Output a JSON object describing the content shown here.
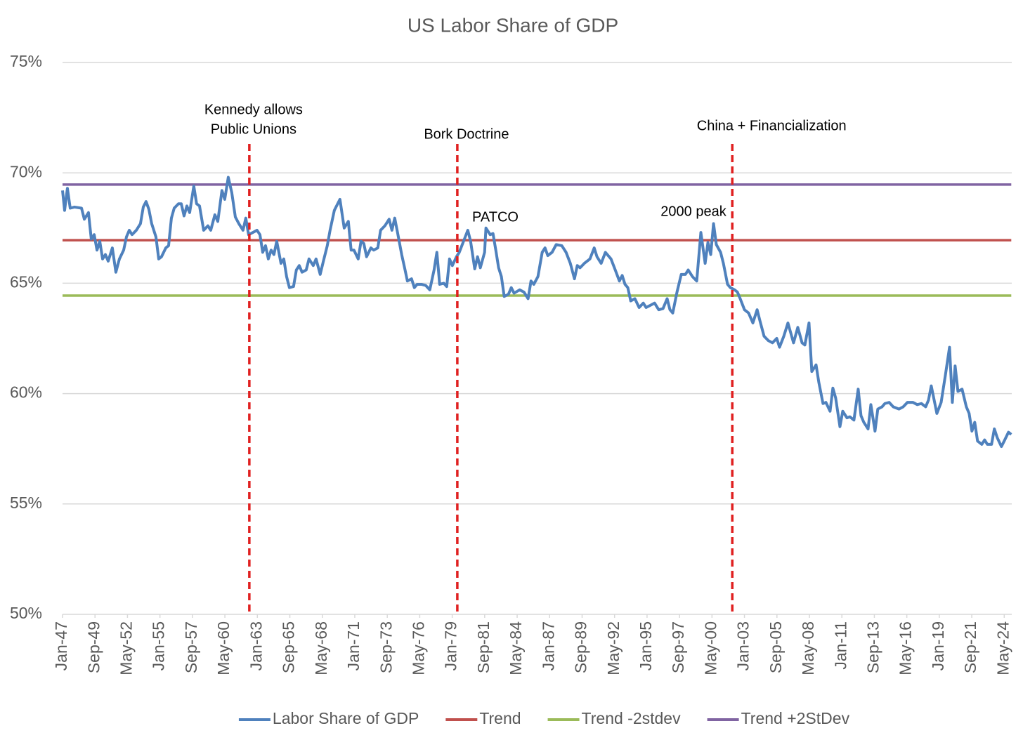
{
  "chart_data": {
    "type": "line",
    "title": "US Labor Share of GDP",
    "xlim": [
      1947,
      2024.95
    ],
    "ylim": [
      50,
      75
    ],
    "yticks": [
      {
        "value": 50,
        "label": "50%"
      },
      {
        "value": 55,
        "label": "55%"
      },
      {
        "value": 60,
        "label": "60%"
      },
      {
        "value": 65,
        "label": "65%"
      },
      {
        "value": 70,
        "label": "70%"
      },
      {
        "value": 75,
        "label": "75%"
      }
    ],
    "xticks": [
      {
        "value": 1947,
        "label": "Jan-47"
      },
      {
        "value": 1949.667,
        "label": "Sep-49"
      },
      {
        "value": 1952.333,
        "label": "May-52"
      },
      {
        "value": 1955,
        "label": "Jan-55"
      },
      {
        "value": 1957.667,
        "label": "Sep-57"
      },
      {
        "value": 1960.333,
        "label": "May-60"
      },
      {
        "value": 1963,
        "label": "Jan-63"
      },
      {
        "value": 1965.667,
        "label": "Sep-65"
      },
      {
        "value": 1968.333,
        "label": "May-68"
      },
      {
        "value": 1971,
        "label": "Jan-71"
      },
      {
        "value": 1973.667,
        "label": "Sep-73"
      },
      {
        "value": 1976.333,
        "label": "May-76"
      },
      {
        "value": 1979,
        "label": "Jan-79"
      },
      {
        "value": 1981.667,
        "label": "Sep-81"
      },
      {
        "value": 1984.333,
        "label": "May-84"
      },
      {
        "value": 1987,
        "label": "Jan-87"
      },
      {
        "value": 1989.667,
        "label": "Sep-89"
      },
      {
        "value": 1992.333,
        "label": "May-92"
      },
      {
        "value": 1995,
        "label": "Jan-95"
      },
      {
        "value": 1997.667,
        "label": "Sep-97"
      },
      {
        "value": 2000.333,
        "label": "May-00"
      },
      {
        "value": 2003,
        "label": "Jan-03"
      },
      {
        "value": 2005.667,
        "label": "Sep-05"
      },
      {
        "value": 2008.333,
        "label": "May-08"
      },
      {
        "value": 2011,
        "label": "Jan-11"
      },
      {
        "value": 2013.667,
        "label": "Sep-13"
      },
      {
        "value": 2016.333,
        "label": "May-16"
      },
      {
        "value": 2019,
        "label": "Jan-19"
      },
      {
        "value": 2021.667,
        "label": "Sep-21"
      },
      {
        "value": 2024.333,
        "label": "May-24"
      }
    ],
    "grid": true,
    "legend": "bottom",
    "series": [
      {
        "name": "Labor Share of GDP",
        "color": "#4f81bd",
        "x": [
          1947.0,
          1947.17,
          1947.4,
          1947.63,
          1947.98,
          1948.56,
          1948.79,
          1949.13,
          1949.36,
          1949.6,
          1949.83,
          1950.06,
          1950.29,
          1950.52,
          1950.75,
          1951.09,
          1951.38,
          1951.67,
          1952.02,
          1952.25,
          1952.48,
          1952.71,
          1953.06,
          1953.4,
          1953.63,
          1953.86,
          1954.09,
          1954.32,
          1954.67,
          1954.9,
          1955.13,
          1955.48,
          1955.71,
          1955.94,
          1956.17,
          1956.52,
          1956.75,
          1956.98,
          1957.21,
          1957.44,
          1957.78,
          1958.01,
          1958.25,
          1958.59,
          1958.94,
          1959.17,
          1959.51,
          1959.75,
          1960.09,
          1960.32,
          1960.61,
          1960.9,
          1961.19,
          1961.48,
          1961.82,
          1962.05,
          1962.28,
          1962.63,
          1962.97,
          1963.21,
          1963.44,
          1963.67,
          1963.9,
          1964.13,
          1964.36,
          1964.59,
          1964.94,
          1965.17,
          1965.4,
          1965.63,
          1965.97,
          1966.2,
          1966.44,
          1966.67,
          1967.01,
          1967.24,
          1967.59,
          1967.82,
          1968.16,
          1968.4,
          1968.74,
          1968.97,
          1969.32,
          1969.78,
          1970.13,
          1970.47,
          1970.7,
          1970.93,
          1971.28,
          1971.51,
          1971.74,
          1971.97,
          1972.32,
          1972.55,
          1972.89,
          1973.12,
          1973.47,
          1973.82,
          1974.05,
          1974.28,
          1974.51,
          1974.85,
          1975.09,
          1975.32,
          1975.66,
          1975.89,
          1976.12,
          1976.47,
          1976.82,
          1977.16,
          1977.51,
          1977.74,
          1977.97,
          1978.31,
          1978.55,
          1978.78,
          1979.01,
          1979.35,
          1979.58,
          1979.93,
          1980.28,
          1980.51,
          1980.85,
          1981.08,
          1981.31,
          1981.66,
          1981.77,
          1982.12,
          1982.35,
          1982.58,
          1982.81,
          1983.04,
          1983.27,
          1983.62,
          1983.85,
          1984.08,
          1984.54,
          1984.89,
          1985.23,
          1985.47,
          1985.7,
          1986.04,
          1986.39,
          1986.62,
          1986.85,
          1987.2,
          1987.54,
          1988.0,
          1988.35,
          1988.7,
          1989.04,
          1989.27,
          1989.5,
          1989.85,
          1990.31,
          1990.66,
          1990.89,
          1991.23,
          1991.58,
          1992.04,
          1992.39,
          1992.73,
          1992.96,
          1993.19,
          1993.42,
          1993.66,
          1994.0,
          1994.35,
          1994.69,
          1994.92,
          1995.27,
          1995.62,
          1995.96,
          1996.31,
          1996.65,
          1996.88,
          1997.11,
          1997.46,
          1997.81,
          1998.15,
          1998.38,
          1998.73,
          1999.08,
          1999.42,
          1999.77,
          2000.0,
          2000.23,
          2000.46,
          2000.69,
          2001.04,
          2001.27,
          2001.61,
          2001.84,
          2002.19,
          2002.42,
          2002.65,
          2003.0,
          2003.34,
          2003.69,
          2004.04,
          2004.27,
          2004.61,
          2004.96,
          2005.3,
          2005.65,
          2005.88,
          2006.23,
          2006.57,
          2006.8,
          2007.03,
          2007.38,
          2007.73,
          2007.96,
          2008.3,
          2008.53,
          2008.88,
          2009.11,
          2009.45,
          2009.69,
          2010.03,
          2010.26,
          2010.49,
          2010.84,
          2011.07,
          2011.42,
          2011.65,
          2011.99,
          2012.34,
          2012.57,
          2012.8,
          2013.15,
          2013.38,
          2013.72,
          2013.95,
          2014.3,
          2014.53,
          2014.88,
          2015.22,
          2015.69,
          2016.03,
          2016.38,
          2016.84,
          2017.19,
          2017.53,
          2017.88,
          2018.11,
          2018.34,
          2018.8,
          2019.15,
          2019.49,
          2019.84,
          2020.07,
          2020.3,
          2020.53,
          2020.87,
          2021.22,
          2021.45,
          2021.68,
          2021.91,
          2022.14,
          2022.49,
          2022.72,
          2022.95,
          2023.29,
          2023.52,
          2023.76,
          2024.1,
          2024.33,
          2024.68,
          2024.91
        ],
        "values": [
          69.2,
          68.3,
          69.3,
          68.4,
          68.45,
          68.4,
          67.9,
          68.2,
          67.0,
          67.2,
          66.5,
          66.9,
          66.1,
          66.3,
          66.0,
          66.6,
          65.5,
          66.1,
          66.5,
          67.1,
          67.4,
          67.2,
          67.4,
          67.7,
          68.45,
          68.7,
          68.35,
          67.7,
          67.1,
          66.1,
          66.2,
          66.6,
          66.7,
          67.95,
          68.4,
          68.6,
          68.6,
          68.05,
          68.5,
          68.2,
          69.4,
          68.6,
          68.5,
          67.4,
          67.6,
          67.4,
          68.1,
          67.8,
          69.2,
          68.8,
          69.8,
          69.1,
          68.0,
          67.7,
          67.4,
          67.95,
          67.2,
          67.3,
          67.4,
          67.2,
          66.4,
          66.7,
          66.1,
          66.5,
          66.3,
          66.9,
          65.9,
          66.1,
          65.3,
          64.8,
          64.85,
          65.6,
          65.8,
          65.5,
          65.6,
          66.1,
          65.8,
          66.1,
          65.4,
          65.95,
          66.7,
          67.4,
          68.3,
          68.8,
          67.5,
          67.8,
          66.5,
          66.5,
          66.1,
          66.9,
          66.8,
          66.2,
          66.6,
          66.5,
          66.6,
          67.4,
          67.6,
          67.9,
          67.4,
          67.95,
          67.3,
          66.3,
          65.7,
          65.1,
          65.2,
          64.8,
          64.95,
          64.95,
          64.9,
          64.7,
          65.6,
          66.4,
          64.95,
          65.0,
          64.85,
          66.1,
          65.8,
          66.2,
          66.4,
          66.9,
          67.4,
          66.9,
          65.65,
          66.2,
          65.7,
          66.4,
          67.5,
          67.2,
          67.25,
          66.5,
          65.7,
          65.3,
          64.4,
          64.5,
          64.8,
          64.55,
          64.7,
          64.6,
          64.3,
          65.1,
          64.95,
          65.3,
          66.4,
          66.6,
          66.25,
          66.4,
          66.75,
          66.7,
          66.4,
          65.9,
          65.2,
          65.8,
          65.7,
          65.9,
          66.1,
          66.6,
          66.2,
          65.9,
          66.4,
          66.1,
          65.6,
          65.1,
          65.35,
          64.95,
          64.8,
          64.2,
          64.3,
          63.9,
          64.1,
          63.9,
          64.0,
          64.1,
          63.8,
          63.85,
          64.3,
          63.8,
          63.65,
          64.6,
          65.4,
          65.4,
          65.6,
          65.3,
          65.1,
          67.3,
          65.9,
          66.85,
          66.3,
          67.7,
          66.75,
          66.4,
          65.9,
          64.95,
          64.8,
          64.7,
          64.6,
          64.3,
          63.8,
          63.65,
          63.2,
          63.8,
          63.3,
          62.6,
          62.4,
          62.3,
          62.5,
          62.1,
          62.6,
          63.2,
          62.75,
          62.3,
          63.0,
          62.3,
          62.2,
          63.2,
          61.0,
          61.3,
          60.5,
          59.55,
          59.6,
          59.2,
          60.25,
          59.8,
          58.5,
          59.2,
          58.9,
          58.95,
          58.8,
          60.2,
          59.0,
          58.7,
          58.4,
          59.5,
          58.3,
          59.3,
          59.4,
          59.55,
          59.6,
          59.4,
          59.3,
          59.4,
          59.6,
          59.6,
          59.5,
          59.55,
          59.4,
          59.7,
          60.35,
          59.1,
          59.6,
          60.8,
          62.1,
          59.6,
          61.25,
          60.1,
          60.2,
          59.4,
          59.1,
          58.3,
          58.7,
          57.85,
          57.7,
          57.9,
          57.7,
          57.7,
          58.4,
          58.0,
          57.6,
          57.85,
          58.25,
          58.15
        ]
      },
      {
        "name": "Trend",
        "color": "#c0504d",
        "x": [
          1947,
          2024.91
        ],
        "values": [
          66.95,
          66.95
        ]
      },
      {
        "name": "Trend -2stdev",
        "color": "#9bbb59",
        "x": [
          1947,
          2024.91
        ],
        "values": [
          64.44,
          64.44
        ]
      },
      {
        "name": "Trend +2StDev",
        "color": "#8064a2",
        "x": [
          1947,
          2024.91
        ],
        "values": [
          69.47,
          69.47
        ]
      }
    ],
    "events": [
      {
        "x": 1962.34,
        "label": [
          "Kennedy allows",
          "Public Unions"
        ]
      },
      {
        "x": 1979.42,
        "label": [
          "Bork Doctrine"
        ]
      },
      {
        "x": 2002.0,
        "label": [
          "China + Financialization"
        ]
      }
    ],
    "event_color": "#e02020",
    "annotations": [
      "PATCO",
      "2000 peak"
    ]
  }
}
